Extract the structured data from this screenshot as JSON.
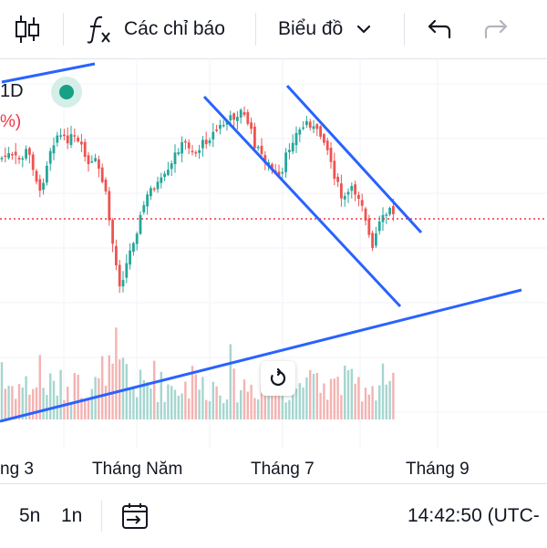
{
  "toolbar": {
    "chart_type_icon": "candlestick-icon",
    "indicators_icon": "function-fx-icon",
    "indicators_label": "Các chỉ báo",
    "chart_menu_label": "Biểu đồ",
    "chart_menu_icon": "chevron-down-icon",
    "undo_icon": "undo-icon",
    "redo_icon": "redo-icon"
  },
  "legend": {
    "interval": "1D",
    "change_fragment": "%)",
    "status_color": "#16a085"
  },
  "chart_data": {
    "type": "candlestick",
    "x_tick_labels": [
      "ng 3",
      "Tháng Năm",
      "Tháng 7",
      "Tháng 9"
    ],
    "up_color": "#26a69a",
    "down_color": "#ef5350",
    "drawing_color": "#2962ff",
    "price_line_color": "#f23645"
  },
  "reset_icon": "reset-rotate-icon",
  "bottom": {
    "range_5n": "5n",
    "range_1n": "1n",
    "date_range_icon": "calendar-range-icon",
    "time_label": "14:42:50 (UTC-"
  }
}
